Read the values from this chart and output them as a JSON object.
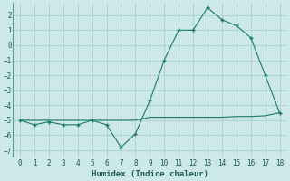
{
  "xlabel": "Humidex (Indice chaleur)",
  "x": [
    0,
    1,
    2,
    3,
    4,
    5,
    6,
    7,
    8,
    9,
    10,
    11,
    12,
    13,
    14,
    15,
    16,
    17,
    18
  ],
  "y_main": [
    -5.0,
    -5.3,
    -5.1,
    -5.3,
    -5.3,
    -5.0,
    -5.3,
    -6.8,
    -5.9,
    -3.7,
    -1.0,
    1.0,
    1.0,
    2.5,
    1.7,
    1.3,
    0.5,
    -2.0,
    -4.5
  ],
  "y_flat": [
    -5.0,
    -5.0,
    -5.0,
    -5.0,
    -5.0,
    -5.0,
    -5.0,
    -5.0,
    -5.0,
    -4.8,
    -4.8,
    -4.8,
    -4.8,
    -4.8,
    -4.8,
    -4.75,
    -4.75,
    -4.7,
    -4.5
  ],
  "line_color": "#1a7a6e",
  "bg_color": "#cce8e8",
  "grid_color": "#aacece",
  "ylim": [
    -7.5,
    2.8
  ],
  "xlim": [
    -0.5,
    18.5
  ],
  "yticks": [
    -7,
    -6,
    -5,
    -4,
    -3,
    -2,
    -1,
    0,
    1,
    2
  ],
  "xticks": [
    0,
    1,
    2,
    3,
    4,
    5,
    6,
    7,
    8,
    9,
    10,
    11,
    12,
    13,
    14,
    15,
    16,
    17,
    18
  ]
}
